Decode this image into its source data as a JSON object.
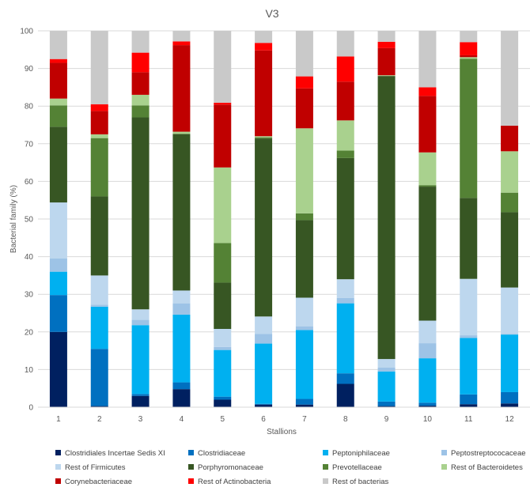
{
  "chart_data": {
    "type": "bar",
    "stacked": true,
    "title": "V3",
    "xlabel": "Stallions",
    "ylabel": "Bacterial family (%)",
    "ylim": [
      0,
      100
    ],
    "yticks": [
      0,
      10,
      20,
      30,
      40,
      50,
      60,
      70,
      80,
      90,
      100
    ],
    "grid": true,
    "legend_position": "bottom",
    "categories": [
      "1",
      "2",
      "3",
      "4",
      "5",
      "6",
      "7",
      "8",
      "9",
      "10",
      "11",
      "12"
    ],
    "series": [
      {
        "name": "Clostridiales Incertae Sedis XI",
        "color": "#002060",
        "values": [
          20,
          0.3,
          3,
          4.8,
          2,
          0.7,
          0.7,
          6.2,
          0.3,
          0.4,
          0.8,
          1
        ]
      },
      {
        "name": "Clostridiaceae",
        "color": "#0070c0",
        "values": [
          9.8,
          15.2,
          0.5,
          1.8,
          0.8,
          0.2,
          1.5,
          2.8,
          1.2,
          0.8,
          2.6,
          3
        ]
      },
      {
        "name": "Peptoniphilaceae",
        "color": "#00b0f0",
        "values": [
          6.2,
          11.2,
          18.3,
          18,
          12.4,
          16,
          18.3,
          18.6,
          8,
          11.8,
          15,
          15.3
        ]
      },
      {
        "name": "Peptostreptococaceae",
        "color": "#9dc3e6",
        "values": [
          3.5,
          0.5,
          1.4,
          3,
          0.8,
          2.6,
          1,
          1.4,
          1,
          4,
          0.7,
          0.2
        ]
      },
      {
        "name": "Rest of Firmicutes",
        "color": "#bdd7ee",
        "values": [
          14.9,
          7.8,
          2.8,
          3.4,
          4.8,
          4.6,
          7.6,
          5,
          2.3,
          6,
          15,
          12.3
        ]
      },
      {
        "name": "Porphyromonaceae",
        "color": "#375623",
        "values": [
          20.1,
          21,
          51,
          41.6,
          12.3,
          47.3,
          20.6,
          32.2,
          75.2,
          35.6,
          21.5,
          20
        ]
      },
      {
        "name": "Prevotellaceae",
        "color": "#548235",
        "values": [
          5.7,
          15.5,
          3.2,
          0,
          10.5,
          0.3,
          1.8,
          2,
          0,
          0.4,
          37,
          5.2
        ]
      },
      {
        "name": "Rest of Bacteroidetes",
        "color": "#a9d18e",
        "values": [
          1.8,
          1,
          2.8,
          0.6,
          20.1,
          0.3,
          22.6,
          8,
          0.2,
          8.7,
          0.4,
          11
        ]
      },
      {
        "name": "Corynebacteriaceae",
        "color": "#c00000",
        "values": [
          9.5,
          6.2,
          6,
          23,
          16.7,
          22.8,
          10.6,
          10.3,
          7.2,
          15,
          0.5,
          6.8
        ]
      },
      {
        "name": "Rest of Actinobacteria",
        "color": "#ff0000",
        "values": [
          1,
          1.8,
          5.2,
          1,
          0.5,
          2,
          3.2,
          6.7,
          1.7,
          2.3,
          3.5,
          0
        ]
      },
      {
        "name": "Rest of bacterias",
        "color": "#c9c9c9",
        "values": [
          7.5,
          19.5,
          5.8,
          2.8,
          19.1,
          3.2,
          12.1,
          6.8,
          2.9,
          15,
          3,
          25.2
        ]
      }
    ]
  }
}
